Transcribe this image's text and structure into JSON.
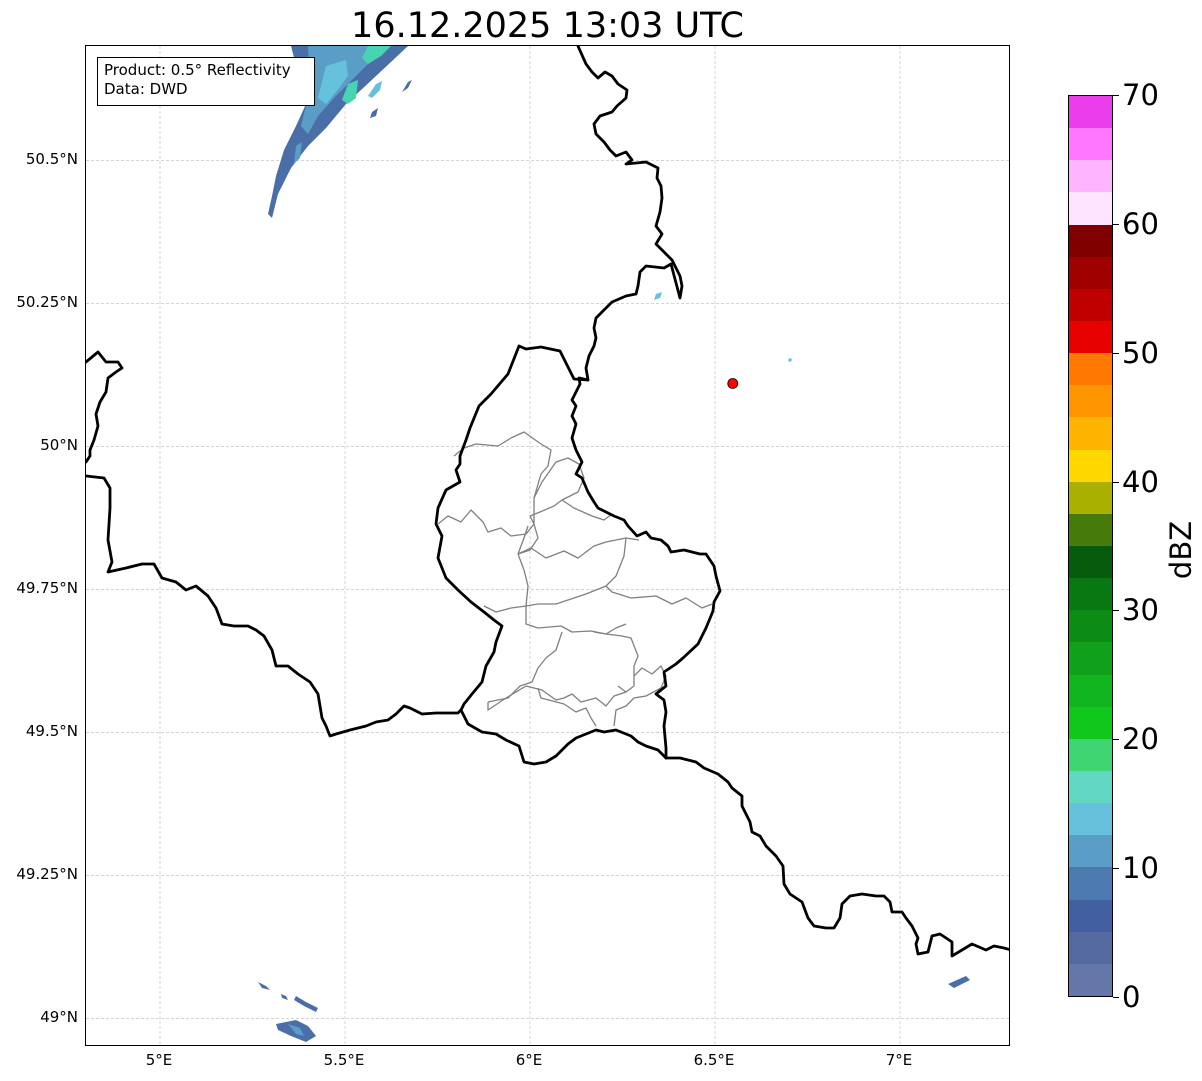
{
  "title": "16.12.2025 13:03 UTC",
  "info_box": {
    "product": "Product: 0.5° Reflectivity",
    "data": "Data: DWD"
  },
  "axes": {
    "lon_range": [
      4.8,
      7.3
    ],
    "lat_range": [
      48.95,
      50.7
    ],
    "lon_ticks": [
      {
        "value": 5.0,
        "label": "5°E"
      },
      {
        "value": 5.5,
        "label": "5.5°E"
      },
      {
        "value": 6.0,
        "label": "6°E"
      },
      {
        "value": 6.5,
        "label": "6.5°E"
      },
      {
        "value": 7.0,
        "label": "7°E"
      }
    ],
    "lat_ticks": [
      {
        "value": 50.5,
        "label": "50.5°N"
      },
      {
        "value": 50.25,
        "label": "50.25°N"
      },
      {
        "value": 50.0,
        "label": "50°N"
      },
      {
        "value": 49.75,
        "label": "49.75°N"
      },
      {
        "value": 49.5,
        "label": "49.5°N"
      },
      {
        "value": 49.25,
        "label": "49.25°N"
      },
      {
        "value": 49.0,
        "label": "49°N"
      }
    ],
    "grid": true
  },
  "radar_site": {
    "lon": 6.548,
    "lat": 50.11,
    "color": "#ff0000"
  },
  "colorbar": {
    "unit": "dBZ",
    "min": 0,
    "max": 70,
    "ticks": [
      0,
      10,
      20,
      30,
      40,
      50,
      60,
      70
    ],
    "colors": [
      "#6577a8",
      "#5369a0",
      "#4260a0",
      "#4b7ab0",
      "#5a9ec8",
      "#66c2dc",
      "#62d8c4",
      "#3ed572",
      "#10c81c",
      "#10b41c",
      "#10a01a",
      "#0c8c14",
      "#0a7812",
      "#065c0c",
      "#467a0a",
      "#aab000",
      "#ffd800",
      "#ffb400",
      "#ff9600",
      "#ff7800",
      "#e60000",
      "#c00000",
      "#a00000",
      "#800000",
      "#ffe4ff",
      "#ffb4ff",
      "#ff78ff",
      "#eb3ceb"
    ]
  },
  "echo_colors": {
    "weak": "#4a6fa8",
    "mid": "#5a9ec8",
    "cyan": "#66c2dc",
    "teal": "#48d4b0"
  }
}
